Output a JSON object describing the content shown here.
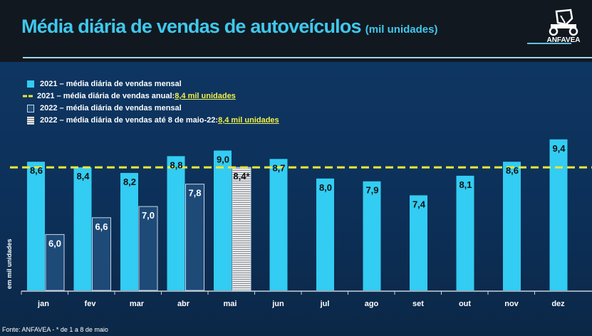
{
  "title": "Média diária de vendas de autoveículos",
  "subtitle": "(mil unidades)",
  "logo_text": "ANFAVEA",
  "source": "Fonte: ANFAVEA  -  * de 1 a 8 de maio",
  "colors": {
    "bar_2021": "#33ccf2",
    "bar_2022": "#1e4a78",
    "annual_line": "#e8e83a",
    "title": "#3fc8ec",
    "highlight": "#f3f04a"
  },
  "legend": [
    {
      "label": "2021 – média diária de vendas mensal",
      "highlight": "",
      "icon": "solid-cyan-square"
    },
    {
      "label": "2021 – média diária de vendas anual: ",
      "highlight": "8,4 mil unidades",
      "icon": "yellow-dashed-line"
    },
    {
      "label": "2022 – média diária de vendas mensal",
      "highlight": "",
      "icon": "dark-blue-square"
    },
    {
      "label": "2022 – média diária de vendas até 8 de maio-22: ",
      "highlight": "8,4 mil unidades",
      "icon": "striped-square"
    }
  ],
  "chart_data": {
    "type": "bar",
    "ylabel": "em mil unidades",
    "ylim": [
      4,
      10
    ],
    "grid": false,
    "legend_position": "top-left",
    "categories": [
      "jan",
      "fev",
      "mar",
      "abr",
      "mai",
      "jun",
      "jul",
      "ago",
      "set",
      "out",
      "nov",
      "dez"
    ],
    "series": [
      {
        "name": "2021 – média diária de vendas mensal",
        "values": [
          8.6,
          8.4,
          8.2,
          8.8,
          9.0,
          8.7,
          8.0,
          7.9,
          7.4,
          8.1,
          8.6,
          9.4
        ],
        "labels": [
          "8,6",
          "8,4",
          "8,2",
          "8,8",
          "9,0",
          "8,7",
          "8,0",
          "7,9",
          "7,4",
          "8,1",
          "8,6",
          "9,4"
        ]
      },
      {
        "name": "2022 – média diária de vendas mensal",
        "values": [
          6.0,
          6.6,
          7.0,
          7.8,
          8.4,
          null,
          null,
          null,
          null,
          null,
          null,
          null
        ],
        "labels": [
          "6,0",
          "6,6",
          "7,0",
          "7,8",
          "8,4*",
          null,
          null,
          null,
          null,
          null,
          null,
          null
        ],
        "partial_month": "mai"
      }
    ],
    "reference_line": {
      "name": "2021 – média diária de vendas anual",
      "value": 8.4
    }
  }
}
